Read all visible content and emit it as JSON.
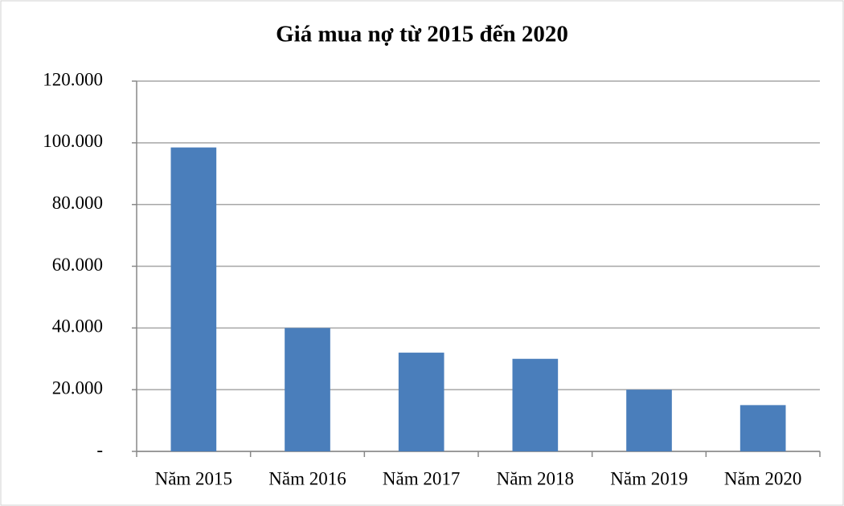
{
  "chart_data": {
    "type": "bar",
    "title": "Giá mua nợ từ 2015 đến 2020",
    "categories": [
      "Năm 2015",
      "Năm 2016",
      "Năm 2017",
      "Năm 2018",
      "Năm 2019",
      "Năm 2020"
    ],
    "values": [
      98500,
      40000,
      32000,
      30000,
      20000,
      15000
    ],
    "color": "#4a7ebb",
    "ylim": [
      0,
      120000
    ],
    "yticks": [
      {
        "value": 0,
        "label": "-"
      },
      {
        "value": 20000,
        "label": "20.000"
      },
      {
        "value": 40000,
        "label": "40.000"
      },
      {
        "value": 60000,
        "label": "60.000"
      },
      {
        "value": 80000,
        "label": "80.000"
      },
      {
        "value": 100000,
        "label": "100.000"
      },
      {
        "value": 120000,
        "label": "120.000"
      }
    ],
    "grid": true
  }
}
